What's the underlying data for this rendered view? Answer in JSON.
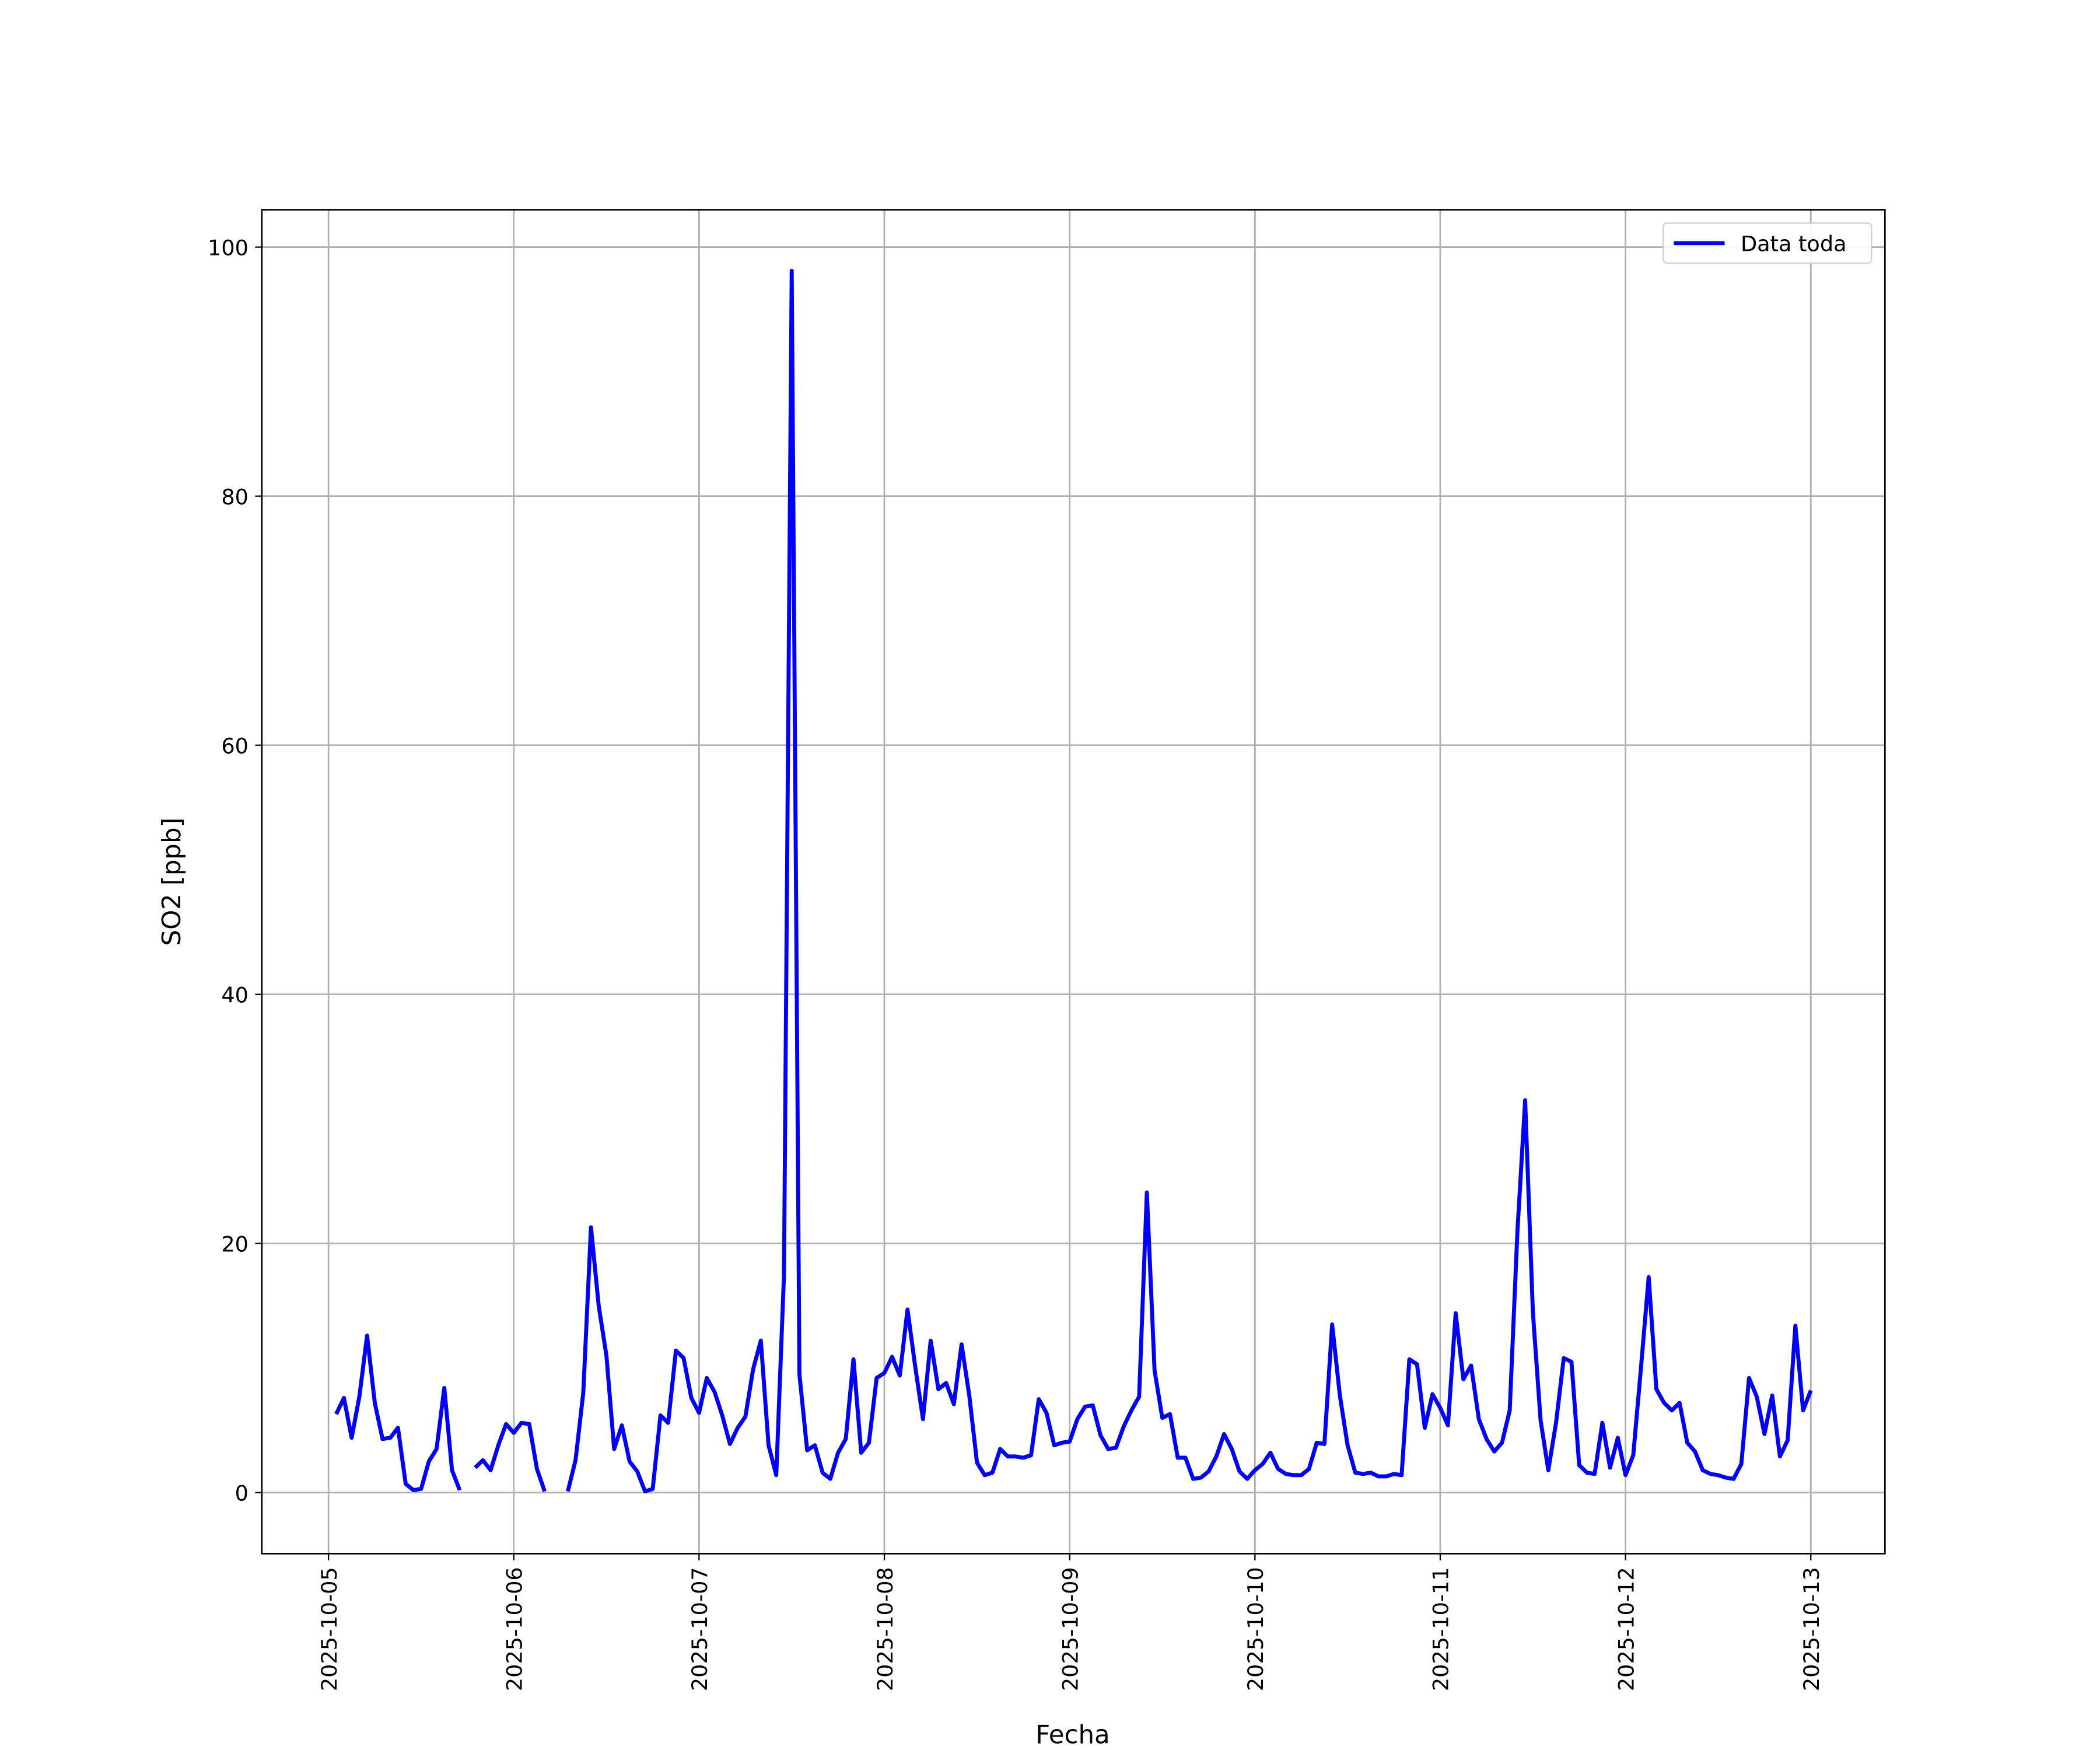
{
  "chart_data": {
    "type": "line",
    "xlabel": "Fecha",
    "ylabel": "SO2 [ppb]",
    "xlim": [
      "2025-10-04 15:22",
      "2025-10-13 09:36"
    ],
    "xticks": [
      "2025-10-05",
      "2025-10-06",
      "2025-10-07",
      "2025-10-08",
      "2025-10-09",
      "2025-10-10",
      "2025-10-11",
      "2025-10-12",
      "2025-10-13"
    ],
    "ylim": [
      -4.9,
      103.0
    ],
    "yticks": [
      0,
      20,
      40,
      60,
      80,
      100
    ],
    "grid": true,
    "legend": "upper right",
    "x": [
      "2025-10-05 01:00",
      "2025-10-05 02:00",
      "2025-10-05 03:00",
      "2025-10-05 04:00",
      "2025-10-05 05:00",
      "2025-10-05 06:00",
      "2025-10-05 07:00",
      "2025-10-05 08:00",
      "2025-10-05 09:00",
      "2025-10-05 10:00",
      "2025-10-05 11:00",
      "2025-10-05 12:00",
      "2025-10-05 13:00",
      "2025-10-05 14:00",
      "2025-10-05 15:00",
      "2025-10-05 16:00",
      "2025-10-05 17:00",
      "2025-10-05 18:00",
      "2025-10-05 19:00",
      "2025-10-05 20:00",
      "2025-10-05 21:00",
      "2025-10-05 22:00",
      "2025-10-05 23:00",
      "2025-10-06 00:00",
      "2025-10-06 01:00",
      "2025-10-06 02:00",
      "2025-10-06 03:00",
      "2025-10-06 04:00",
      "2025-10-06 05:00",
      "2025-10-06 06:00",
      "2025-10-06 07:00",
      "2025-10-06 08:00",
      "2025-10-06 09:00",
      "2025-10-06 10:00",
      "2025-10-06 11:00",
      "2025-10-06 12:00",
      "2025-10-06 13:00",
      "2025-10-06 14:00",
      "2025-10-06 15:00",
      "2025-10-06 16:00",
      "2025-10-06 17:00",
      "2025-10-06 18:00",
      "2025-10-06 19:00",
      "2025-10-06 20:00",
      "2025-10-06 21:00",
      "2025-10-06 22:00",
      "2025-10-06 23:00",
      "2025-10-07 00:00",
      "2025-10-07 01:00",
      "2025-10-07 02:00",
      "2025-10-07 03:00",
      "2025-10-07 04:00",
      "2025-10-07 05:00",
      "2025-10-07 06:00",
      "2025-10-07 07:00",
      "2025-10-07 08:00",
      "2025-10-07 09:00",
      "2025-10-07 10:00",
      "2025-10-07 11:00",
      "2025-10-07 12:00",
      "2025-10-07 13:00",
      "2025-10-07 14:00",
      "2025-10-07 15:00",
      "2025-10-07 16:00",
      "2025-10-07 17:00",
      "2025-10-07 18:00",
      "2025-10-07 19:00",
      "2025-10-07 20:00",
      "2025-10-07 21:00",
      "2025-10-07 22:00",
      "2025-10-07 23:00",
      "2025-10-08 00:00",
      "2025-10-08 01:00",
      "2025-10-08 02:00",
      "2025-10-08 03:00",
      "2025-10-08 04:00",
      "2025-10-08 05:00",
      "2025-10-08 06:00",
      "2025-10-08 07:00",
      "2025-10-08 08:00",
      "2025-10-08 09:00",
      "2025-10-08 10:00",
      "2025-10-08 11:00",
      "2025-10-08 12:00",
      "2025-10-08 13:00",
      "2025-10-08 14:00",
      "2025-10-08 15:00",
      "2025-10-08 16:00",
      "2025-10-08 17:00",
      "2025-10-08 18:00",
      "2025-10-08 19:00",
      "2025-10-08 20:00",
      "2025-10-08 21:00",
      "2025-10-08 22:00",
      "2025-10-08 23:00",
      "2025-10-09 00:00",
      "2025-10-09 01:00",
      "2025-10-09 02:00",
      "2025-10-09 03:00",
      "2025-10-09 04:00",
      "2025-10-09 05:00",
      "2025-10-09 06:00",
      "2025-10-09 07:00",
      "2025-10-09 08:00",
      "2025-10-09 09:00",
      "2025-10-09 10:00",
      "2025-10-09 11:00",
      "2025-10-09 12:00",
      "2025-10-09 13:00",
      "2025-10-09 14:00",
      "2025-10-09 15:00",
      "2025-10-09 16:00",
      "2025-10-09 17:00",
      "2025-10-09 18:00",
      "2025-10-09 19:00",
      "2025-10-09 20:00",
      "2025-10-09 21:00",
      "2025-10-09 22:00",
      "2025-10-09 23:00",
      "2025-10-10 00:00",
      "2025-10-10 01:00",
      "2025-10-10 02:00",
      "2025-10-10 03:00",
      "2025-10-10 04:00",
      "2025-10-10 05:00",
      "2025-10-10 06:00",
      "2025-10-10 07:00",
      "2025-10-10 08:00",
      "2025-10-10 09:00",
      "2025-10-10 10:00",
      "2025-10-10 11:00",
      "2025-10-10 12:00",
      "2025-10-10 13:00",
      "2025-10-10 14:00",
      "2025-10-10 15:00",
      "2025-10-10 16:00",
      "2025-10-10 17:00",
      "2025-10-10 18:00",
      "2025-10-10 19:00",
      "2025-10-10 20:00",
      "2025-10-10 21:00",
      "2025-10-10 22:00",
      "2025-10-10 23:00",
      "2025-10-11 00:00",
      "2025-10-11 01:00",
      "2025-10-11 02:00",
      "2025-10-11 03:00",
      "2025-10-11 04:00",
      "2025-10-11 05:00",
      "2025-10-11 06:00",
      "2025-10-11 07:00",
      "2025-10-11 08:00",
      "2025-10-11 09:00",
      "2025-10-11 10:00",
      "2025-10-11 11:00",
      "2025-10-11 12:00",
      "2025-10-11 13:00",
      "2025-10-11 14:00",
      "2025-10-11 15:00",
      "2025-10-11 16:00",
      "2025-10-11 17:00",
      "2025-10-11 18:00",
      "2025-10-11 19:00",
      "2025-10-11 20:00",
      "2025-10-11 21:00",
      "2025-10-11 22:00",
      "2025-10-11 23:00",
      "2025-10-12 00:00",
      "2025-10-12 01:00",
      "2025-10-12 02:00",
      "2025-10-12 03:00",
      "2025-10-12 04:00",
      "2025-10-12 05:00",
      "2025-10-12 06:00",
      "2025-10-12 07:00",
      "2025-10-12 08:00",
      "2025-10-12 09:00",
      "2025-10-12 10:00",
      "2025-10-12 11:00",
      "2025-10-12 12:00",
      "2025-10-12 13:00",
      "2025-10-12 14:00",
      "2025-10-12 15:00",
      "2025-10-12 16:00",
      "2025-10-12 17:00",
      "2025-10-12 18:00",
      "2025-10-12 19:00",
      "2025-10-12 20:00",
      "2025-10-12 21:00",
      "2025-10-12 22:00",
      "2025-10-12 23:00",
      "2025-10-13 00:00"
    ],
    "series": [
      {
        "name": "Data toda",
        "color": "#0000ff",
        "values": [
          6.3,
          7.6,
          4.4,
          7.7,
          12.6,
          7.2,
          4.3,
          4.4,
          5.2,
          0.7,
          0.2,
          0.3,
          2.5,
          3.5,
          8.4,
          1.8,
          0.2,
          null,
          2.0,
          2.6,
          1.8,
          3.8,
          5.5,
          4.8,
          5.6,
          5.5,
          1.9,
          0.1,
          null,
          null,
          0.1,
          2.6,
          8.0,
          21.3,
          15.0,
          11.0,
          3.5,
          5.4,
          2.5,
          1.7,
          0.1,
          0.3,
          6.2,
          5.6,
          11.4,
          10.8,
          7.6,
          6.4,
          9.2,
          8.1,
          6.2,
          3.9,
          5.2,
          6.1,
          9.9,
          12.2,
          3.8,
          1.4,
          17.5,
          98.1,
          9.5,
          3.4,
          3.8,
          1.6,
          1.1,
          3.2,
          4.3,
          10.7,
          3.2,
          4.0,
          9.2,
          9.6,
          10.9,
          9.4,
          14.7,
          10.1,
          5.9,
          12.2,
          8.3,
          8.8,
          7.1,
          11.9,
          7.8,
          2.4,
          1.4,
          1.6,
          3.5,
          2.9,
          2.9,
          2.8,
          3.0,
          7.5,
          6.4,
          3.8,
          4.0,
          4.1,
          5.9,
          6.9,
          7.0,
          4.6,
          3.5,
          3.6,
          5.3,
          6.6,
          7.7,
          24.1,
          9.8,
          6.0,
          6.3,
          2.8,
          2.8,
          1.1,
          1.2,
          1.7,
          2.9,
          4.7,
          3.5,
          1.7,
          1.1,
          1.8,
          2.3,
          3.2,
          1.9,
          1.5,
          1.4,
          1.4,
          1.9,
          4.0,
          3.9,
          13.5,
          7.8,
          3.8,
          1.6,
          1.5,
          1.6,
          1.3,
          1.3,
          1.5,
          1.4,
          10.7,
          10.3,
          5.2,
          7.9,
          6.8,
          5.4,
          14.4,
          9.1,
          10.2,
          5.9,
          4.3,
          3.3,
          4.0,
          6.6,
          21.0,
          31.5,
          14.5,
          5.8,
          1.8,
          5.6,
          10.8,
          10.5,
          2.2,
          1.6,
          1.5,
          5.6,
          2.0,
          4.4,
          1.4,
          3.0,
          10.0,
          17.3,
          8.3,
          7.2,
          6.6,
          7.2,
          4.0,
          3.3,
          1.8,
          1.5,
          1.4,
          1.2,
          1.1,
          2.3,
          9.2,
          7.7,
          4.7,
          7.8,
          2.9,
          4.2,
          13.4,
          6.6,
          8.2
        ]
      }
    ]
  }
}
